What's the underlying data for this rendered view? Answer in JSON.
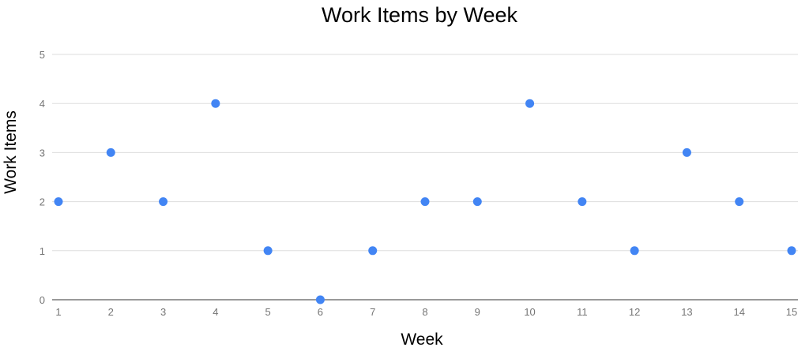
{
  "chart_data": {
    "type": "scatter",
    "title": "Work Items by Week",
    "xlabel": "Week",
    "ylabel": "Work Items",
    "x": [
      1,
      2,
      3,
      4,
      5,
      6,
      7,
      8,
      9,
      10,
      11,
      12,
      13,
      14,
      15
    ],
    "y": [
      2,
      3,
      2,
      4,
      1,
      0,
      1,
      2,
      2,
      4,
      2,
      1,
      3,
      2,
      1
    ],
    "xlim": [
      1,
      15
    ],
    "ylim": [
      0,
      5
    ],
    "xticks": [
      1,
      2,
      3,
      4,
      5,
      6,
      7,
      8,
      9,
      10,
      11,
      12,
      13,
      14,
      15
    ],
    "yticks": [
      0,
      1,
      2,
      3,
      4,
      5
    ],
    "grid": true,
    "legend": "none",
    "point_color": "#4285f4"
  }
}
